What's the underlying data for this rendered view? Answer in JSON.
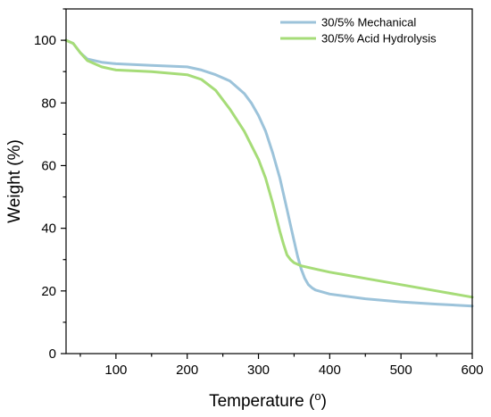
{
  "chart_data": {
    "type": "line",
    "title": "",
    "xlabel": "Temperature (",
    "xlabel_sup": "o",
    "xlabel_close": ")",
    "ylabel": "Weight (%)",
    "xlim": [
      30,
      600
    ],
    "ylim": [
      0,
      110
    ],
    "xticks": [
      100,
      200,
      300,
      400,
      500,
      600
    ],
    "yticks": [
      0,
      20,
      40,
      60,
      80,
      100
    ],
    "grid": false,
    "legend_position": "top-right",
    "series": [
      {
        "name": "30/5% Mechanical",
        "color": "#9cc3da",
        "x": [
          30,
          40,
          50,
          60,
          80,
          100,
          150,
          200,
          220,
          240,
          260,
          280,
          290,
          300,
          310,
          320,
          330,
          340,
          345,
          350,
          355,
          360,
          365,
          370,
          375,
          380,
          400,
          450,
          500,
          550,
          600
        ],
        "y": [
          100,
          99,
          96,
          94,
          93,
          92.5,
          92,
          91.5,
          90.5,
          89,
          87,
          83,
          80,
          76,
          71,
          64,
          56,
          46,
          41,
          36,
          31,
          27,
          24,
          22,
          21,
          20.3,
          19,
          17.5,
          16.5,
          15.8,
          15.2
        ]
      },
      {
        "name": "30/5% Acid Hydrolysis",
        "color": "#a6dc78",
        "x": [
          30,
          40,
          50,
          60,
          80,
          100,
          150,
          200,
          220,
          240,
          260,
          280,
          300,
          310,
          320,
          330,
          335,
          340,
          345,
          350,
          360,
          380,
          400,
          450,
          500,
          550,
          600
        ],
        "y": [
          100,
          99,
          96,
          93.5,
          91.5,
          90.5,
          90,
          89,
          87.5,
          84,
          78,
          71,
          62,
          56,
          48,
          39,
          35,
          31.5,
          30,
          29,
          28,
          27,
          26,
          24,
          22,
          20,
          18
        ]
      }
    ]
  }
}
